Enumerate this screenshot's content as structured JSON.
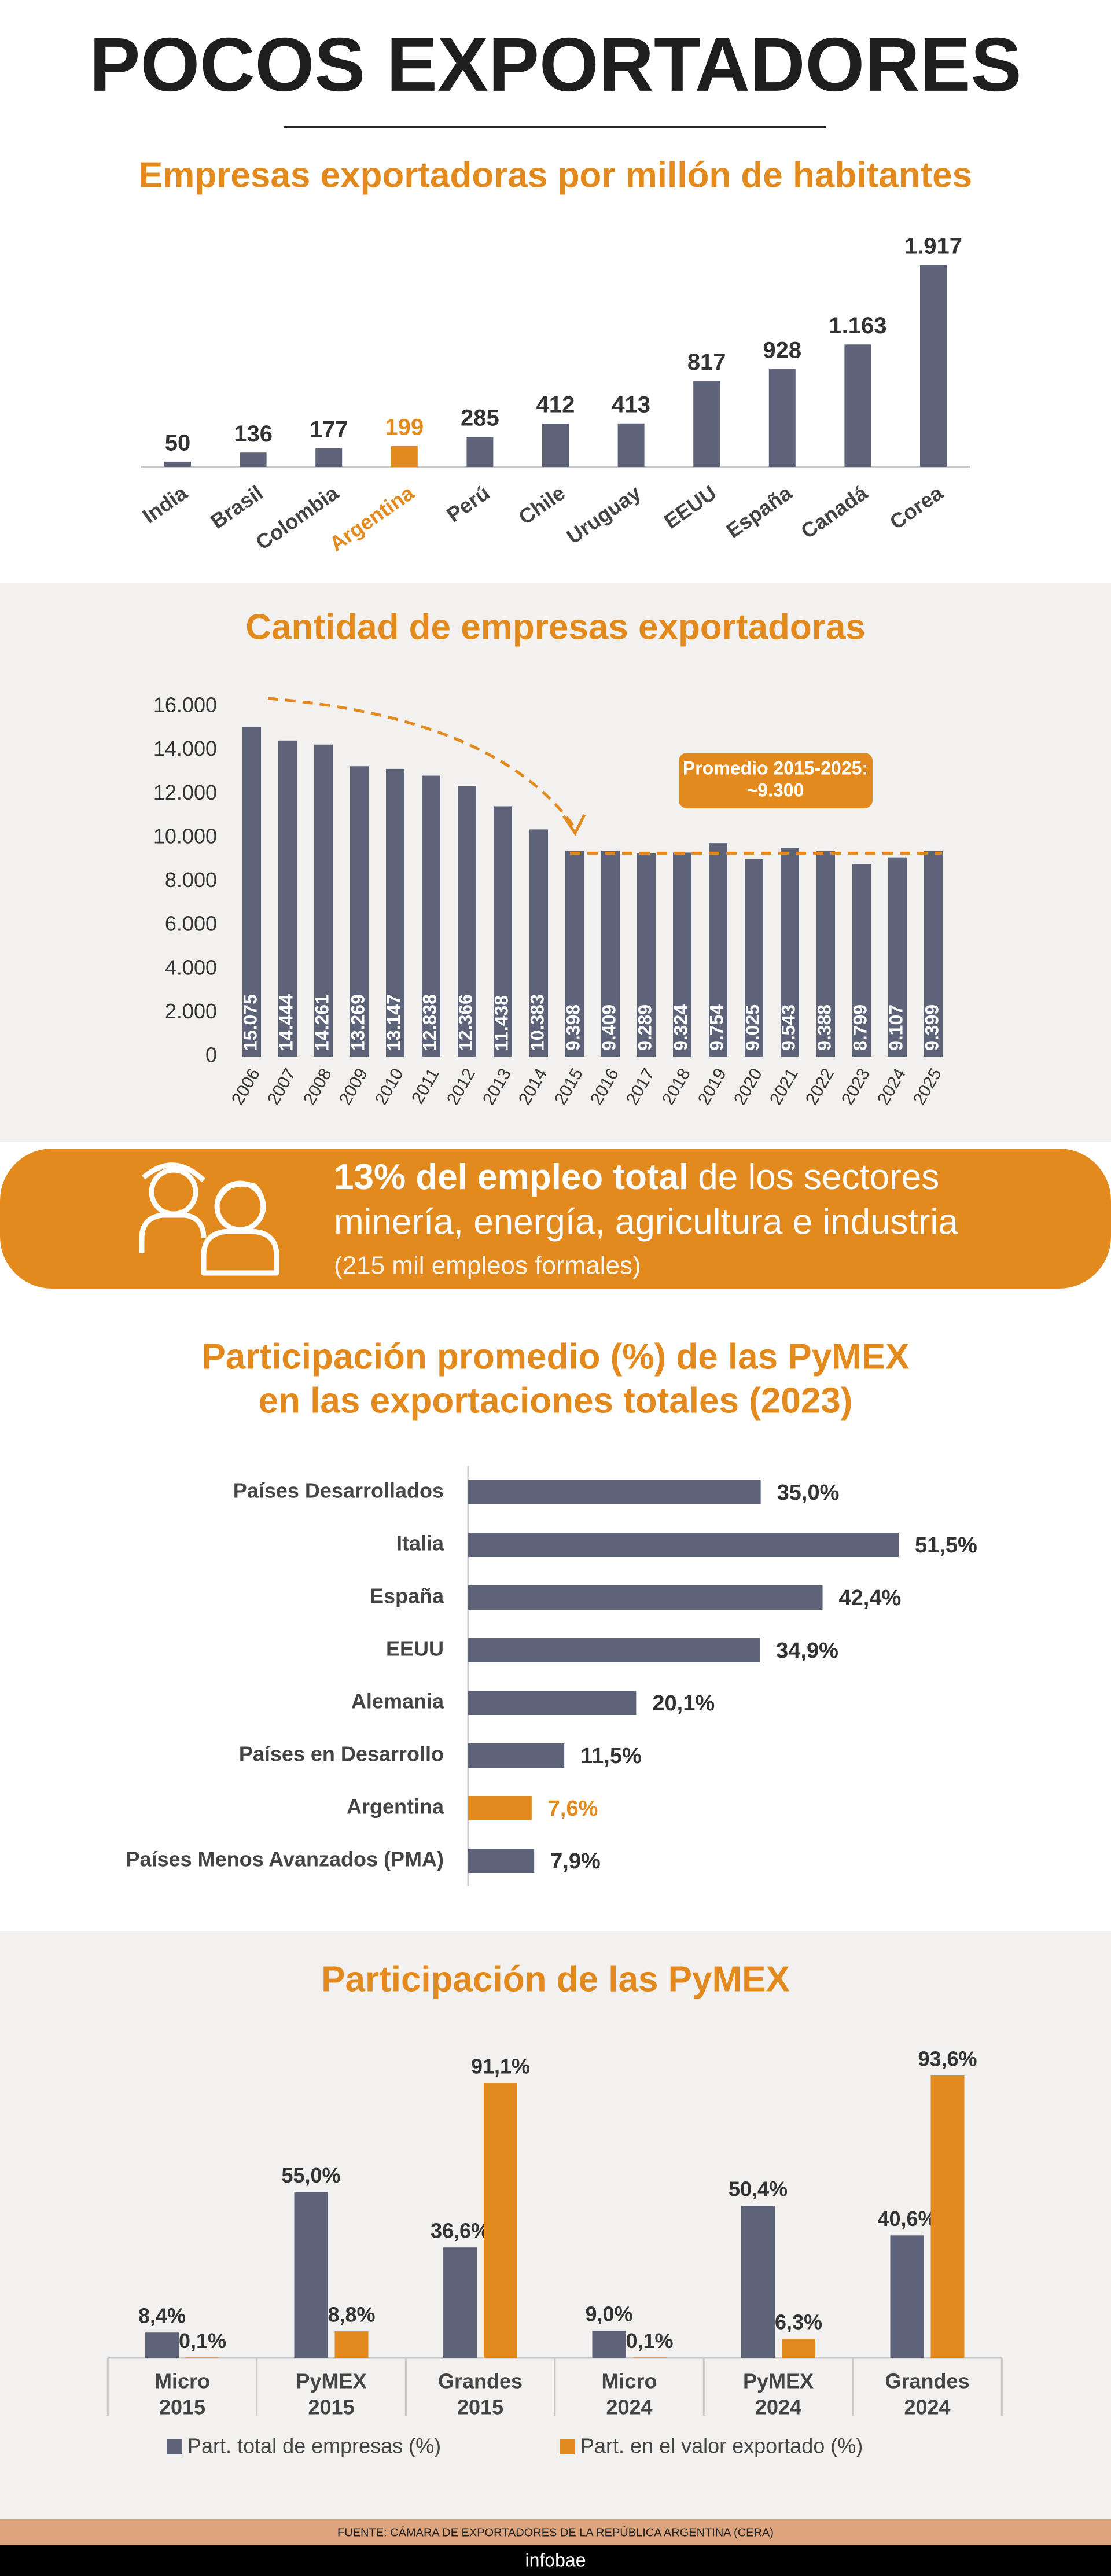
{
  "header": {
    "title": "POCOS EXPORTADORES"
  },
  "chart_data": [
    {
      "type": "bar",
      "title": "Empresas exportadoras por millón de habitantes",
      "categories": [
        "India",
        "Brasil",
        "Colombia",
        "Argentina",
        "Perú",
        "Chile",
        "Uruguay",
        "EEUU",
        "España",
        "Canadá",
        "Corea"
      ],
      "values": [
        50,
        136,
        177,
        199,
        285,
        412,
        413,
        817,
        928,
        1163,
        1917
      ],
      "value_labels": [
        "50",
        "136",
        "177",
        "199",
        "285",
        "412",
        "413",
        "817",
        "928",
        "1.163",
        "1.917"
      ],
      "colors": [
        "#5d6379",
        "#5d6379",
        "#5d6379",
        "#e38a1f",
        "#5d6379",
        "#5d6379",
        "#5d6379",
        "#5d6379",
        "#5d6379",
        "#5d6379",
        "#5d6379"
      ]
    },
    {
      "type": "bar",
      "title": "Cantidad de empresas exportadoras",
      "categories": [
        "2006",
        "2007",
        "2008",
        "2009",
        "2010",
        "2011",
        "2012",
        "2013",
        "2014",
        "2015",
        "2016",
        "2017",
        "2018",
        "2019",
        "2020",
        "2021",
        "2022",
        "2023",
        "2024",
        "2025"
      ],
      "values": [
        15075,
        14444,
        14261,
        13269,
        13147,
        12838,
        12366,
        11438,
        10383,
        9398,
        9409,
        9289,
        9324,
        9754,
        9025,
        9543,
        9388,
        8799,
        9107,
        9399
      ],
      "value_labels": [
        "15.075",
        "14.444",
        "14.261",
        "13.269",
        "13.147",
        "12.838",
        "12.366",
        "11.438",
        "10.383",
        "9.398",
        "9.409",
        "9.289",
        "9.324",
        "9.754",
        "9.025",
        "9.543",
        "9.388",
        "8.799",
        "9.107",
        "9.399"
      ],
      "color": "#5d6379",
      "ylim": [
        0,
        16000
      ],
      "yticks": [
        0,
        {
          "value": 2000,
          "label": "2.000"
        },
        {
          "value": 4000,
          "label": "4.000"
        },
        {
          "value": 6000,
          "label": "6.000"
        },
        {
          "value": 8000,
          "label": "8.000"
        },
        {
          "value": 10000,
          "label": "10.000"
        },
        {
          "value": 12000,
          "label": "12.000"
        },
        {
          "value": 14000,
          "label": "14.000"
        },
        {
          "value": 16000,
          "label": "16.000"
        }
      ],
      "annotation": [
        "Promedio 2015-2025:",
        "~9.300"
      ],
      "average": 9300,
      "average_color": "#e38a1f"
    },
    {
      "type": "barh",
      "title": [
        "Participación promedio (%) de las PyMEX",
        "en las exportaciones totales (2023)"
      ],
      "categories": [
        "Países Desarrollados",
        "Italia",
        "España",
        "EEUU",
        "Alemania",
        "Países en Desarrollo",
        "Argentina",
        "Países Menos Avanzados (PMA)"
      ],
      "values": [
        35.0,
        51.5,
        42.4,
        34.9,
        20.1,
        11.5,
        7.6,
        7.9
      ],
      "value_labels": [
        "35,0%",
        "51,5%",
        "42,4%",
        "34,9%",
        "20,1%",
        "11,5%",
        "7,6%",
        "7,9%"
      ],
      "colors": [
        "#5d6379",
        "#5d6379",
        "#5d6379",
        "#5d6379",
        "#5d6379",
        "#5d6379",
        "#e38a1f",
        "#5d6379"
      ]
    },
    {
      "type": "grouped_bar",
      "title": "Participación de las PyMEX",
      "categories": [
        [
          "Micro",
          "2015"
        ],
        [
          "PyMEX",
          "2015"
        ],
        [
          "Grandes",
          "2015"
        ],
        [
          "Micro",
          "2024"
        ],
        [
          "PyMEX",
          "2024"
        ],
        [
          "Grandes",
          "2024"
        ]
      ],
      "series": [
        {
          "name": "Part. total de empresas (%)",
          "color": "#5d6379",
          "values": [
            8.4,
            55.0,
            36.6,
            9.0,
            50.4,
            40.6
          ],
          "value_labels": [
            "8,4%",
            "55,0%",
            "36,6%",
            "9,0%",
            "50,4%",
            "40,6%"
          ]
        },
        {
          "name": "Part. en el valor exportado (%)",
          "color": "#e38a1f",
          "values": [
            0.1,
            8.8,
            91.1,
            0.1,
            6.3,
            93.6
          ],
          "value_labels": [
            "0,1%",
            "8,8%",
            "91,1%",
            "0,1%",
            "6,3%",
            "93,6%"
          ]
        }
      ]
    }
  ],
  "banner": {
    "highlight": "13% del empleo total",
    "text_1": "de los sectores",
    "text_2": "minería, energía, agricultura e industria",
    "note": "(215 mil empleos formales)"
  },
  "footer": {
    "source": "FUENTE: CÁMARA DE EXPORTADORES DE LA REPÚBLICA ARGENTINA (CERA)",
    "brand": "infobae"
  }
}
